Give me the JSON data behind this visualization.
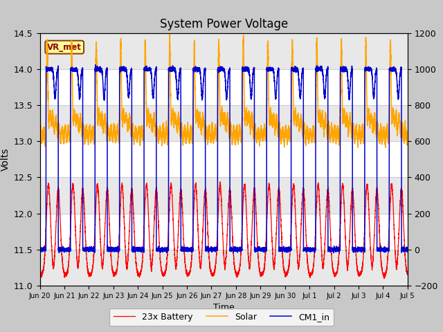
{
  "title": "System Power Voltage",
  "xlabel": "Time",
  "ylabel": "Volts",
  "ylim_left": [
    11.0,
    14.5
  ],
  "ylim_right": [
    -200,
    1200
  ],
  "yticks_left": [
    11.0,
    11.5,
    12.0,
    12.5,
    13.0,
    13.5,
    14.0,
    14.5
  ],
  "yticks_right": [
    -200,
    0,
    200,
    400,
    600,
    800,
    1000,
    1200
  ],
  "plot_bg_color": "#ffffff",
  "fig_bg_color": "#c8c8c8",
  "grid_color": "#cccccc",
  "legend_labels": [
    "23x Battery",
    "Solar",
    "CM1_in"
  ],
  "annotation_text": "VR_met",
  "color_battery": "#ff0000",
  "color_solar": "#ffa500",
  "color_cm1": "#0000cc",
  "hours_total": 360,
  "pts": 7200
}
